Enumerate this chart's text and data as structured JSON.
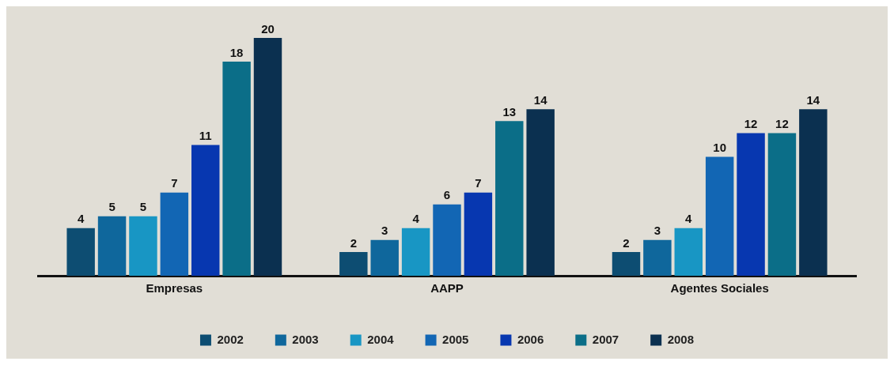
{
  "chart_data": {
    "type": "bar",
    "categories": [
      "Empresas",
      "AAPP",
      "Agentes Sociales"
    ],
    "series": [
      {
        "name": "2002",
        "color": "#0d4d72",
        "values": [
          4,
          2,
          2
        ]
      },
      {
        "name": "2003",
        "color": "#0f679c",
        "values": [
          5,
          3,
          3
        ]
      },
      {
        "name": "2004",
        "color": "#1896c4",
        "values": [
          5,
          4,
          4
        ]
      },
      {
        "name": "2005",
        "color": "#1266b4",
        "values": [
          7,
          6,
          10
        ]
      },
      {
        "name": "2006",
        "color": "#0737b0",
        "values": [
          11,
          7,
          12
        ]
      },
      {
        "name": "2007",
        "color": "#0b6e88",
        "values": [
          18,
          13,
          12
        ]
      },
      {
        "name": "2008",
        "color": "#0b3050",
        "values": [
          20,
          14,
          14
        ]
      }
    ],
    "data_labels": true,
    "legend": "bottom",
    "grid": false
  }
}
